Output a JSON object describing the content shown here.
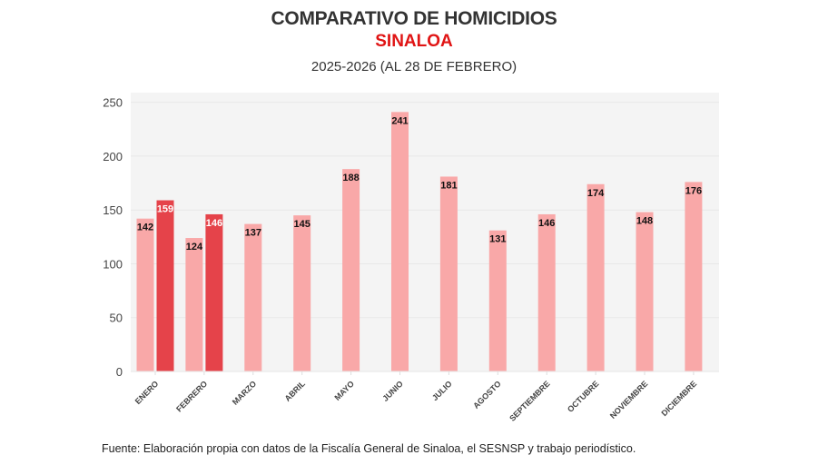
{
  "chart_data": {
    "type": "bar",
    "title": "COMPARATIVO DE HOMICIDIOS",
    "subtitle_highlight": "SINALOA",
    "subtitle": "2025-2026 (AL 28 DE FEBRERO)",
    "xlabel": "",
    "ylabel": "",
    "ylim": [
      0,
      259
    ],
    "yticks": [
      0,
      50,
      100,
      150,
      200,
      250
    ],
    "grid": true,
    "categories": [
      "ENERO",
      "FEBRERO",
      "MARZO",
      "ABRIL",
      "MAYO",
      "JUNIO",
      "JULIO",
      "AGOSTO",
      "SEPTIEMBRE",
      "OCTUBRE",
      "NOVIEMBRE",
      "DICIEMBRE"
    ],
    "series": [
      {
        "name": "2025",
        "color": "#f9a8a8",
        "label_color": "#111111",
        "values": [
          142,
          124,
          137,
          145,
          188,
          241,
          181,
          131,
          146,
          174,
          148,
          176
        ]
      },
      {
        "name": "2026",
        "color": "#e5434a",
        "label_color": "#ffffff",
        "values": [
          159,
          146,
          null,
          null,
          null,
          null,
          null,
          null,
          null,
          null,
          null,
          null
        ]
      }
    ],
    "source": "Fuente: Elaboración propia con datos de la Fiscalía General de Sinaloa, el SESNSP y trabajo periodístico."
  },
  "colors": {
    "title": "#333333",
    "highlight": "#e01414",
    "plot_background": "#f4f4f4",
    "gridline": "#e8e8e8"
  }
}
